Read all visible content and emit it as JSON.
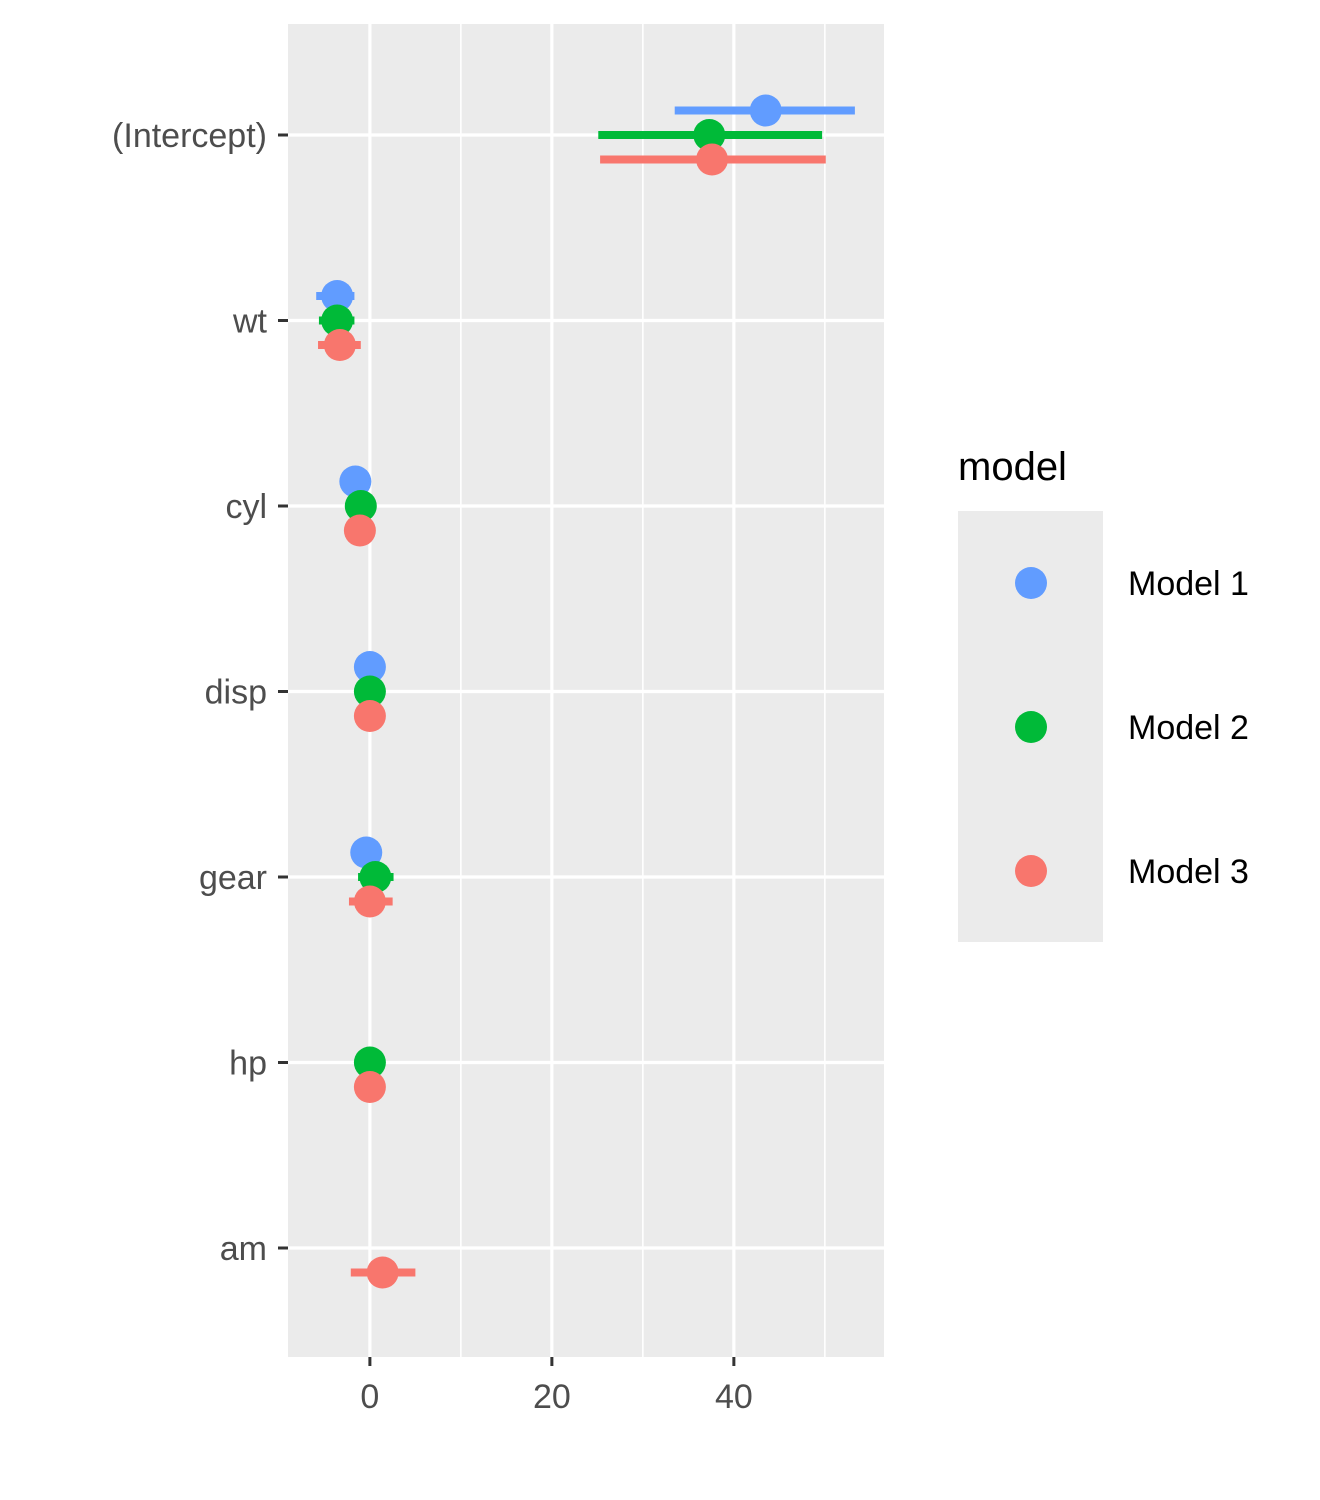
{
  "chart_data": {
    "type": "scatter",
    "subtype": "coefficient-plot",
    "title": "",
    "xlabel": "",
    "ylabel": "",
    "xlim": [
      -9,
      56.5
    ],
    "x_ticks": [
      0,
      20,
      40
    ],
    "x_tick_labels": [
      "0",
      "20",
      "40"
    ],
    "grid": true,
    "legend": {
      "title": "model",
      "placement": "right",
      "entries": [
        "Model 1",
        "Model 2",
        "Model 3"
      ]
    },
    "categories": [
      "(Intercept)",
      "wt",
      "cyl",
      "disp",
      "gear",
      "hp",
      "am"
    ],
    "series": [
      {
        "name": "Model 1",
        "color": "#619CFF",
        "points": [
          {
            "term": "(Intercept)",
            "estimate": 43.5,
            "low": 33.5,
            "high": 53.3
          },
          {
            "term": "wt",
            "estimate": -3.6,
            "low": -5.9,
            "high": -1.7
          },
          {
            "term": "cyl",
            "estimate": -1.6,
            "low": -1.6,
            "high": -1.6
          },
          {
            "term": "disp",
            "estimate": 0.0,
            "low": 0.0,
            "high": 0.0
          },
          {
            "term": "gear",
            "estimate": -0.4,
            "low": -0.4,
            "high": -0.4
          }
        ]
      },
      {
        "name": "Model 2",
        "color": "#00BA38",
        "points": [
          {
            "term": "(Intercept)",
            "estimate": 37.3,
            "low": 25.1,
            "high": 49.7
          },
          {
            "term": "wt",
            "estimate": -3.6,
            "low": -5.6,
            "high": -1.7
          },
          {
            "term": "cyl",
            "estimate": -1.0,
            "low": -1.0,
            "high": -1.0
          },
          {
            "term": "disp",
            "estimate": 0.0,
            "low": 0.0,
            "high": 0.0
          },
          {
            "term": "gear",
            "estimate": 0.6,
            "low": -1.3,
            "high": 2.6
          },
          {
            "term": "hp",
            "estimate": 0.0,
            "low": 0.0,
            "high": 0.0
          }
        ]
      },
      {
        "name": "Model 3",
        "color": "#F8766D",
        "points": [
          {
            "term": "(Intercept)",
            "estimate": 37.6,
            "low": 25.3,
            "high": 50.1
          },
          {
            "term": "wt",
            "estimate": -3.3,
            "low": -5.7,
            "high": -1.0
          },
          {
            "term": "cyl",
            "estimate": -1.1,
            "low": -1.1,
            "high": -1.1
          },
          {
            "term": "disp",
            "estimate": 0.0,
            "low": 0.0,
            "high": 0.0
          },
          {
            "term": "gear",
            "estimate": 0.0,
            "low": -2.3,
            "high": 2.5
          },
          {
            "term": "hp",
            "estimate": 0.0,
            "low": 0.0,
            "high": 0.0
          },
          {
            "term": "am",
            "estimate": 1.4,
            "low": -2.1,
            "high": 5.0
          }
        ]
      }
    ]
  }
}
